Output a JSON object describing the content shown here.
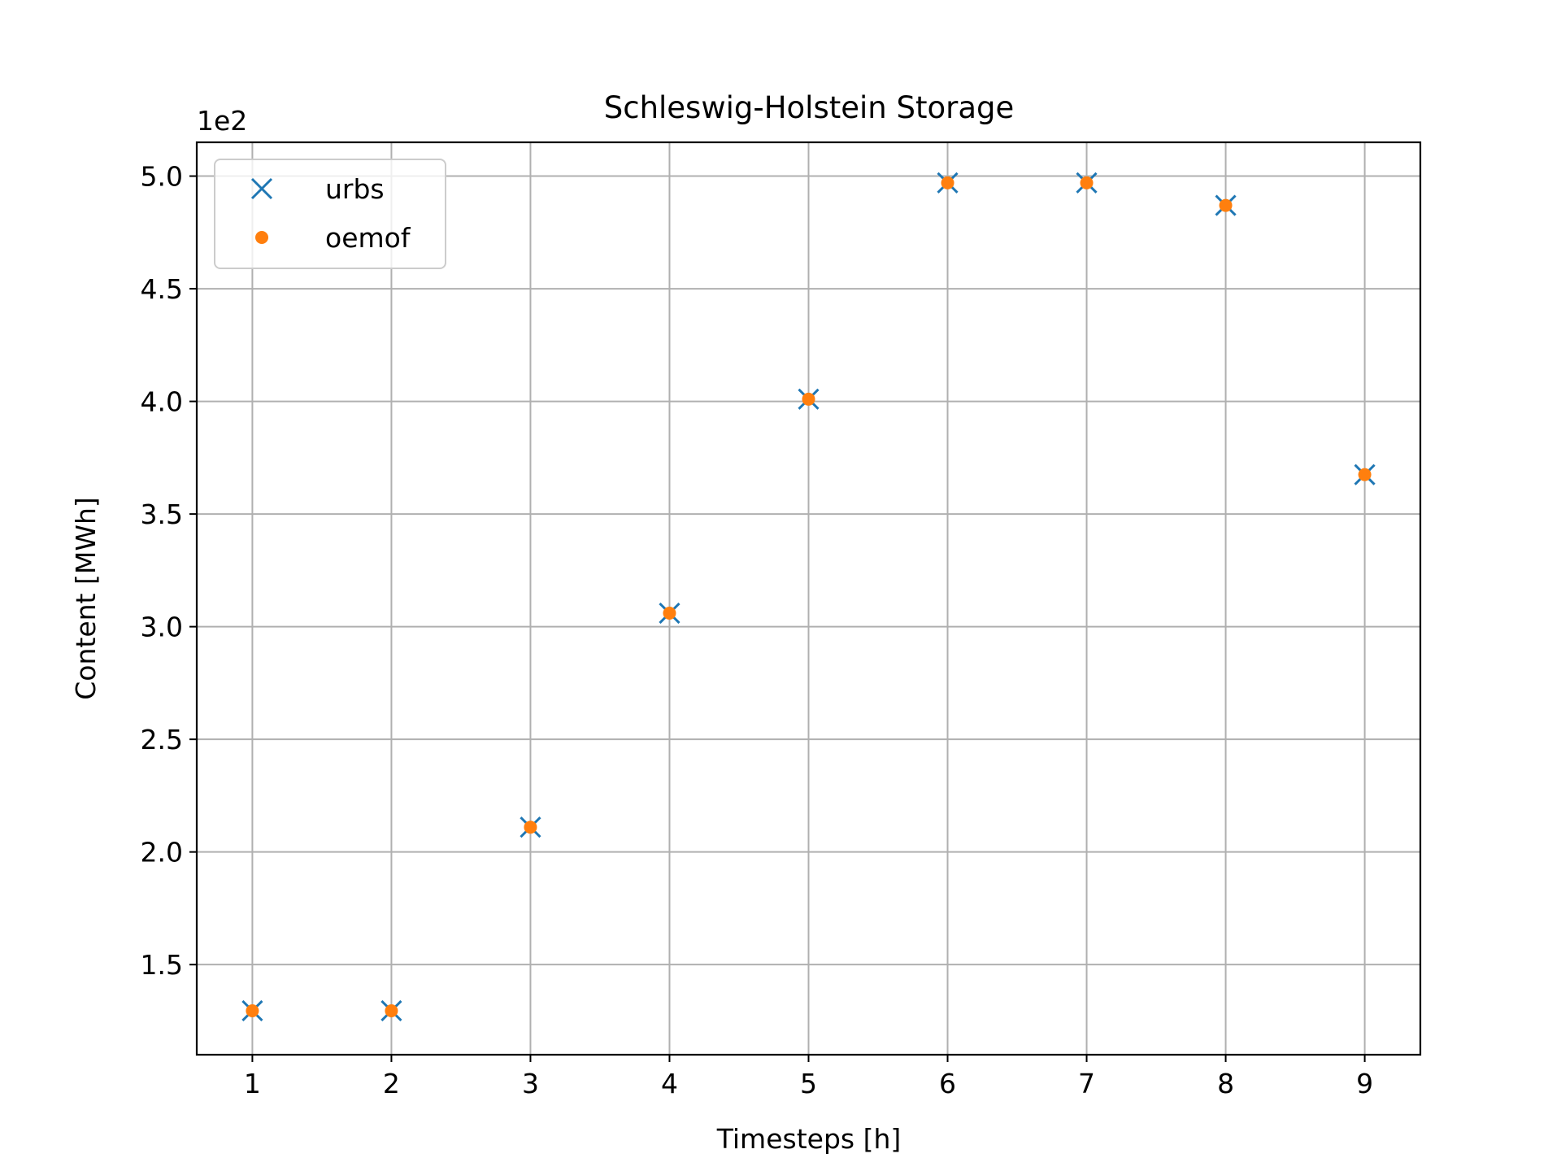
{
  "chart_data": {
    "type": "scatter",
    "title": "Schleswig-Holstein Storage",
    "xlabel": "Timesteps [h]",
    "ylabel": "Content [MWh]",
    "y_offset_label": "1e2",
    "y_scale_factor": 100,
    "xlim": [
      0.6,
      9.4
    ],
    "ylim": [
      110,
      515
    ],
    "x_ticks": [
      1,
      2,
      3,
      4,
      5,
      6,
      7,
      8,
      9
    ],
    "x_tick_labels": [
      "1",
      "2",
      "3",
      "4",
      "5",
      "6",
      "7",
      "8",
      "9"
    ],
    "y_ticks": [
      150,
      200,
      250,
      300,
      350,
      400,
      450,
      500
    ],
    "y_tick_labels": [
      "1.5",
      "2.0",
      "2.5",
      "3.0",
      "3.5",
      "4.0",
      "4.5",
      "5.0"
    ],
    "grid": true,
    "legend_position": "upper-left",
    "series": [
      {
        "name": "urbs",
        "marker": "x",
        "color": "#1f77b4",
        "x": [
          1,
          2,
          3,
          4,
          5,
          6,
          7,
          8,
          9
        ],
        "y": [
          129.5,
          129.5,
          211,
          306,
          401,
          497,
          497,
          487,
          367.5
        ]
      },
      {
        "name": "oemof",
        "marker": "dot",
        "color": "#ff7f0e",
        "x": [
          1,
          2,
          3,
          4,
          5,
          6,
          7,
          8,
          9
        ],
        "y": [
          129.5,
          129.5,
          211,
          306,
          401,
          497,
          497,
          487,
          367.5
        ]
      }
    ]
  }
}
